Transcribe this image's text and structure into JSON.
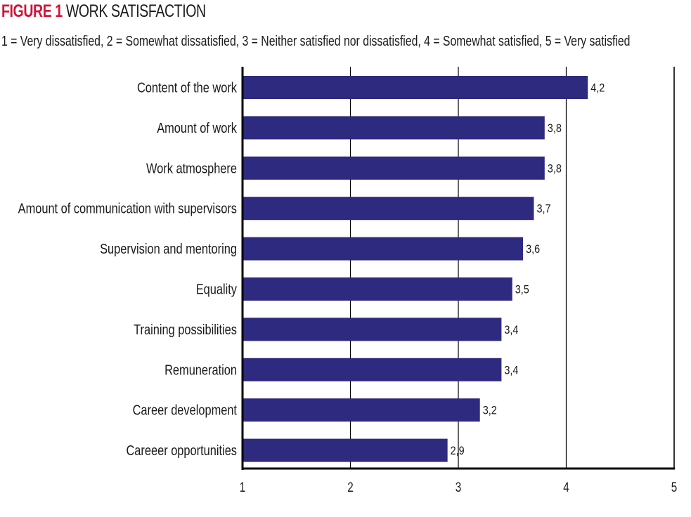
{
  "figure": {
    "label": "FIGURE 1",
    "title": "WORK SATISFACTION",
    "subtitle": "1 = Very dissatisfied, 2 = Somewhat dissatisfied, 3 = Neither satisfied nor dissatisfied, 4 = Somewhat satisfied, 5 = Very satisfied"
  },
  "colors": {
    "bar": "#2e2a80",
    "figure_label": "#d2143a",
    "text": "#1a1a1a"
  },
  "chart_data": {
    "type": "bar",
    "orientation": "horizontal",
    "title": "FIGURE 1 WORK SATISFACTION",
    "subtitle": "1 = Very dissatisfied, 2 = Somewhat dissatisfied, 3 = Neither satisfied nor dissatisfied, 4 = Somewhat satisfied, 5 = Very satisfied",
    "categories": [
      "Content of the work",
      "Amount of work",
      "Work atmosphere",
      "Amount of communication with supervisors",
      "Supervision and mentoring",
      "Equality",
      "Training possibilities",
      "Remuneration",
      "Career development",
      "Careeer opportunities"
    ],
    "values": [
      4.2,
      3.8,
      3.8,
      3.7,
      3.6,
      3.5,
      3.4,
      3.4,
      3.2,
      2.9
    ],
    "value_labels": [
      "4,2",
      "3,8",
      "3,8",
      "3,7",
      "3,6",
      "3,5",
      "3,4",
      "3,4",
      "3,2",
      "2,9"
    ],
    "xlabel": "",
    "ylabel": "",
    "xlim": [
      1,
      5
    ],
    "xticks": [
      1,
      2,
      3,
      4,
      5
    ],
    "xtick_labels": [
      "1",
      "2",
      "3",
      "4",
      "5"
    ],
    "grid": true,
    "legend": "none"
  }
}
